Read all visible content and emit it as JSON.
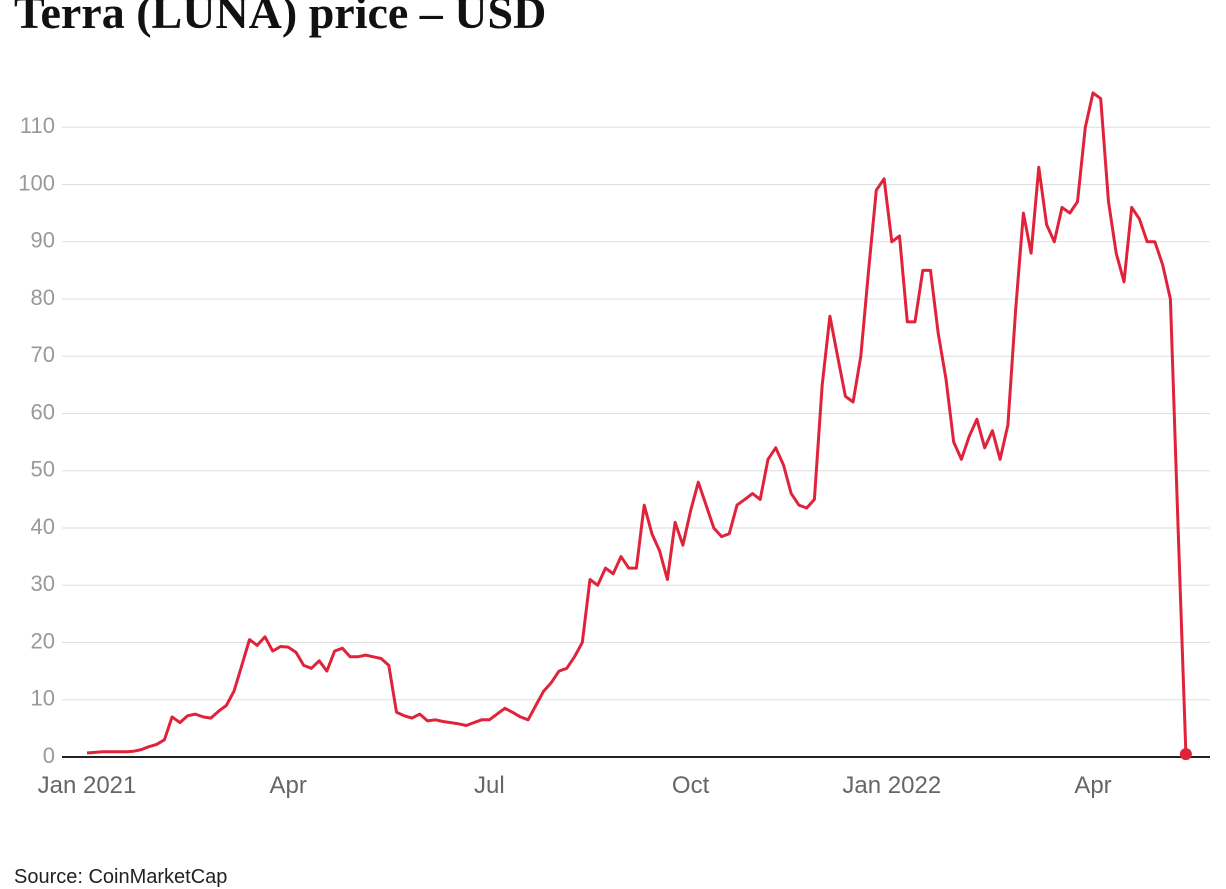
{
  "chart_data": {
    "type": "line",
    "title": "Terra (LUNA) price – USD",
    "source": "Source: CoinMarketCap",
    "color": "#e0233a",
    "grid": true,
    "ylim": [
      0,
      120
    ],
    "yticks": [
      0,
      10,
      20,
      30,
      40,
      50,
      60,
      70,
      80,
      90,
      100,
      110
    ],
    "categories": [
      "Jan 2021",
      null,
      null,
      null,
      null,
      null,
      null,
      null,
      null,
      null,
      null,
      null,
      null,
      null,
      null,
      null,
      null,
      null,
      null,
      null,
      null,
      null,
      null,
      null,
      null,
      null,
      "Apr",
      null,
      null,
      null,
      null,
      null,
      null,
      null,
      null,
      null,
      null,
      null,
      null,
      null,
      null,
      null,
      null,
      null,
      null,
      null,
      null,
      null,
      null,
      null,
      null,
      null,
      "Jul",
      null,
      null,
      null,
      null,
      null,
      null,
      null,
      null,
      null,
      null,
      null,
      null,
      null,
      null,
      null,
      null,
      null,
      null,
      null,
      null,
      null,
      null,
      null,
      null,
      null,
      "Oct",
      null,
      null,
      null,
      null,
      null,
      null,
      null,
      null,
      null,
      null,
      null,
      null,
      null,
      null,
      null,
      null,
      null,
      null,
      null,
      null,
      null,
      null,
      null,
      null,
      null,
      "Jan 2022",
      null,
      null,
      null,
      null,
      null,
      null,
      null,
      null,
      null,
      null,
      null,
      null,
      null,
      null,
      null,
      null,
      null,
      null,
      null,
      null,
      null,
      null,
      null,
      null,
      null,
      "Apr",
      null,
      null,
      null,
      null,
      null,
      null,
      null,
      null,
      null,
      null,
      null,
      null
    ],
    "values": [
      0.7,
      0.8,
      0.9,
      0.9,
      0.9,
      0.9,
      1.0,
      1.3,
      1.8,
      2.2,
      3.0,
      7.0,
      6.0,
      7.2,
      7.5,
      7.0,
      6.8,
      8.0,
      9.0,
      11.5,
      16,
      20.5,
      19.5,
      21,
      18.5,
      19.3,
      19.2,
      18.3,
      16,
      15.5,
      16.8,
      15,
      18.5,
      19,
      17.5,
      17.5,
      17.8,
      17.5,
      17.2,
      16,
      7.8,
      7.2,
      6.8,
      7.5,
      6.3,
      6.5,
      6.2,
      6.0,
      5.8,
      5.5,
      6.0,
      6.5,
      6.5,
      7.5,
      8.5,
      7.8,
      7.0,
      6.5,
      9.0,
      11.5,
      13,
      15,
      15.5,
      17.5,
      20,
      31,
      30,
      33,
      32,
      35,
      33,
      33,
      44,
      39,
      36,
      31,
      41,
      37,
      43,
      48,
      44,
      40,
      38.5,
      39,
      44,
      45,
      46,
      45,
      52,
      54,
      51,
      46,
      44,
      43.5,
      45,
      65,
      77,
      70,
      63,
      62,
      70,
      85,
      99,
      101,
      90,
      91,
      76,
      76,
      85,
      85,
      74,
      66,
      55,
      52,
      56,
      59,
      54,
      57,
      52,
      58,
      78,
      95,
      88,
      103,
      93,
      90,
      96,
      95,
      97,
      110,
      116,
      115,
      97,
      88,
      83,
      96,
      94,
      90,
      90,
      86,
      80,
      40,
      0.5
    ]
  }
}
